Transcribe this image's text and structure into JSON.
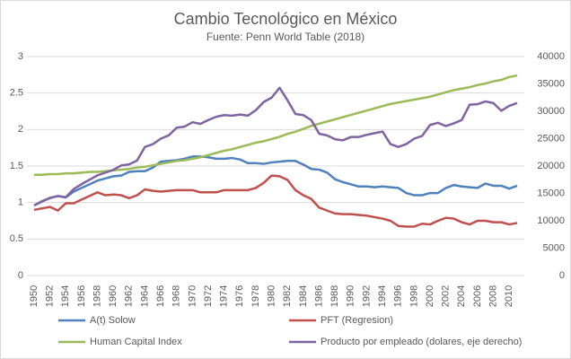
{
  "chart_data": {
    "type": "line",
    "title": "Cambio Tecnológico en México",
    "subtitle": "Fuente: Penn World Table (2018)",
    "categories": [
      "1950",
      null,
      "1952",
      null,
      "1954",
      null,
      "1956",
      null,
      "1958",
      null,
      "1960",
      null,
      "1962",
      null,
      "1964",
      null,
      "1966",
      null,
      "1968",
      null,
      "1970",
      null,
      "1972",
      null,
      "1974",
      null,
      "1976",
      null,
      "1978",
      null,
      "1980",
      null,
      "1982",
      null,
      "1984",
      null,
      "1986",
      null,
      "1988",
      null,
      "1990",
      null,
      "1992",
      null,
      "1994",
      null,
      "1996",
      null,
      "1998",
      null,
      "2000",
      null,
      "2002",
      null,
      "2004",
      null,
      "2006",
      null,
      "2008",
      null,
      "2010",
      null
    ],
    "series": [
      {
        "name": "A(t) Solow",
        "color": "#4f81bd",
        "values": [
          0.96,
          1.02,
          1.06,
          1.09,
          1.07,
          1.15,
          1.2,
          1.25,
          1.3,
          1.33,
          1.36,
          1.37,
          1.42,
          1.43,
          1.43,
          1.48,
          1.56,
          1.57,
          1.58,
          1.6,
          1.63,
          1.63,
          1.62,
          1.6,
          1.6,
          1.61,
          1.59,
          1.54,
          1.54,
          1.53,
          1.55,
          1.56,
          1.57,
          1.57,
          1.52,
          1.46,
          1.45,
          1.41,
          1.32,
          1.28,
          1.25,
          1.22,
          1.22,
          1.21,
          1.22,
          1.21,
          1.2,
          1.13,
          1.1,
          1.1,
          1.13,
          1.13,
          1.2,
          1.24,
          1.22,
          1.21,
          1.2,
          1.26,
          1.23,
          1.23,
          1.19,
          1.23
        ]
      },
      {
        "name": "PFT (Regresion)",
        "color": "#c0504d",
        "values": [
          0.9,
          0.92,
          0.94,
          0.89,
          0.99,
          0.99,
          1.04,
          1.09,
          1.14,
          1.1,
          1.11,
          1.1,
          1.06,
          1.1,
          1.18,
          1.16,
          1.15,
          1.16,
          1.17,
          1.17,
          1.17,
          1.14,
          1.14,
          1.14,
          1.17,
          1.17,
          1.17,
          1.17,
          1.2,
          1.27,
          1.37,
          1.36,
          1.31,
          1.17,
          1.1,
          1.05,
          0.93,
          0.89,
          0.85,
          0.84,
          0.84,
          0.83,
          0.82,
          0.8,
          0.78,
          0.75,
          0.68,
          0.67,
          0.67,
          0.71,
          0.7,
          0.75,
          0.79,
          0.78,
          0.73,
          0.7,
          0.75,
          0.75,
          0.73,
          0.73,
          0.7,
          0.72
        ]
      },
      {
        "name": "Human Capital Index",
        "color": "#9bbb59",
        "values": [
          1.38,
          1.38,
          1.39,
          1.39,
          1.4,
          1.4,
          1.41,
          1.42,
          1.42,
          1.43,
          1.44,
          1.45,
          1.46,
          1.48,
          1.49,
          1.51,
          1.53,
          1.55,
          1.57,
          1.58,
          1.6,
          1.62,
          1.65,
          1.68,
          1.71,
          1.73,
          1.76,
          1.79,
          1.82,
          1.84,
          1.87,
          1.9,
          1.94,
          1.97,
          2.01,
          2.05,
          2.08,
          2.11,
          2.14,
          2.17,
          2.2,
          2.23,
          2.26,
          2.29,
          2.32,
          2.35,
          2.37,
          2.39,
          2.41,
          2.43,
          2.45,
          2.48,
          2.51,
          2.54,
          2.56,
          2.58,
          2.61,
          2.63,
          2.66,
          2.68,
          2.72,
          2.74
        ]
      },
      {
        "name": "Producto por empleado (dolares, eje derecho)",
        "color": "#8064a2",
        "axis": "y2",
        "values": [
          12800,
          13500,
          14200,
          14500,
          14300,
          15800,
          16700,
          17500,
          18300,
          18800,
          19300,
          20100,
          20300,
          21000,
          23500,
          24000,
          25000,
          25600,
          27000,
          27200,
          28000,
          27700,
          28400,
          29000,
          29300,
          29200,
          29400,
          29200,
          30200,
          31700,
          32500,
          34300,
          32000,
          29500,
          29300,
          28400,
          25900,
          25600,
          24900,
          24700,
          25300,
          25300,
          25700,
          26000,
          26300,
          24000,
          23500,
          24000,
          25000,
          25500,
          27500,
          27900,
          27300,
          27800,
          28400,
          31200,
          31300,
          31800,
          31500,
          30100,
          31000,
          31500
        ]
      }
    ],
    "ylim": [
      0,
      3
    ],
    "yticks": [
      0,
      0.5,
      1,
      1.5,
      2,
      2.5,
      3
    ],
    "y2lim": [
      0,
      40000
    ],
    "y2ticks": [
      0,
      5000,
      10000,
      15000,
      20000,
      25000,
      30000,
      35000,
      40000
    ],
    "grid": true,
    "legend": "bottom"
  }
}
